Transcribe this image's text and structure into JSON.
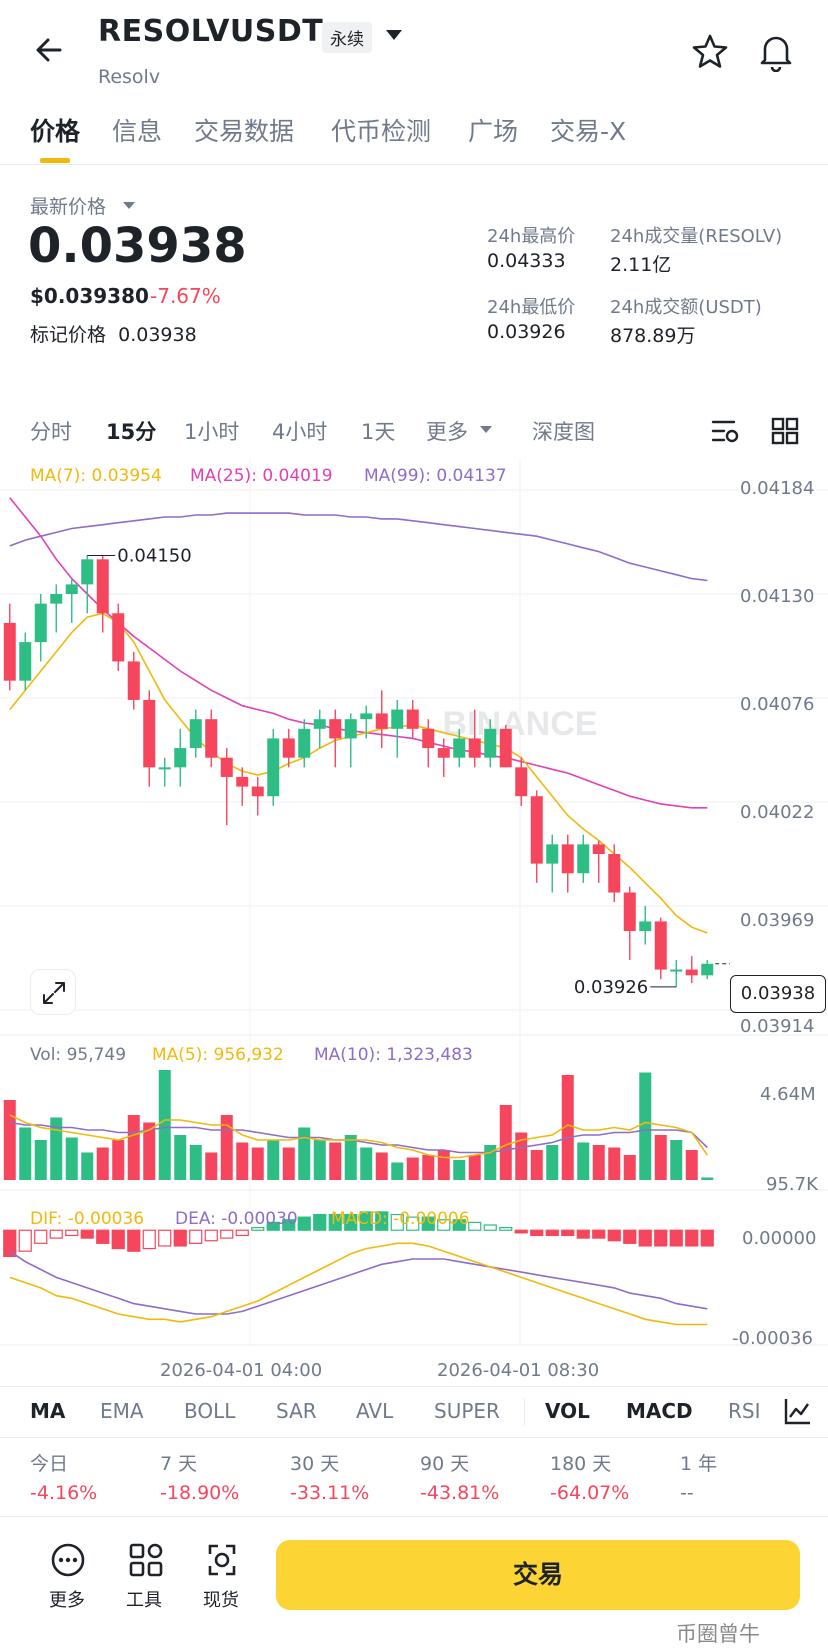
{
  "header": {
    "symbol": "RESOLVUSDT",
    "contract_type": "永续",
    "name": "Resolv"
  },
  "tabs": [
    {
      "label": "价格"
    },
    {
      "label": "信息"
    },
    {
      "label": "交易数据"
    },
    {
      "label": "代币检测"
    },
    {
      "label": "广场"
    },
    {
      "label": "交易-X"
    }
  ],
  "price": {
    "latest_label": "最新价格",
    "last": "0.03938",
    "usd": "$0.039380",
    "change": "-7.67%",
    "mark_label": "标记价格",
    "mark": "0.03938"
  },
  "stats": {
    "high_label": "24h最高价",
    "high": "0.04333",
    "vol_label": "24h成交量(RESOLV)",
    "vol": "2.11亿",
    "low_label": "24h最低价",
    "low": "0.03926",
    "amt_label": "24h成交额(USDT)",
    "amt": "878.89万"
  },
  "timeframes": [
    "分时",
    "15分",
    "1小时",
    "4小时",
    "1天",
    "更多",
    "深度图"
  ],
  "ma_legend": {
    "ma7": "MA(7): 0.03954",
    "ma25": "MA(25): 0.04019",
    "ma99": "MA(99): 0.04137"
  },
  "price_axis": [
    "0.04184",
    "0.04130",
    "0.04076",
    "0.04022",
    "0.03969",
    "0.03914"
  ],
  "chart_annotations": {
    "high": "0.04150",
    "low": "0.03926",
    "current": "0.03938",
    "watermark": "BINANCE"
  },
  "vol_legend": {
    "vol": "Vol: 95,749",
    "ma5": "MA(5): 956,932",
    "ma10": "MA(10): 1,323,483"
  },
  "vol_axis": [
    "4.64M",
    "95.7K"
  ],
  "macd_legend": {
    "dif": "DIF: -0.00036",
    "dea": "DEA: -0.00030",
    "macd": "MACD: -0.00006"
  },
  "macd_axis": [
    "0.00000",
    "-0.00036"
  ],
  "time_axis": [
    "2026-04-01 04:00",
    "2026-04-01 08:30"
  ],
  "indicator_tabs": [
    "MA",
    "EMA",
    "BOLL",
    "SAR",
    "AVL",
    "SUPER",
    "VOL",
    "MACD",
    "RSI"
  ],
  "performance": [
    {
      "label": "今日",
      "value": "-4.16%"
    },
    {
      "label": "7 天",
      "value": "-18.90%"
    },
    {
      "label": "30 天",
      "value": "-33.11%"
    },
    {
      "label": "90 天",
      "value": "-43.81%"
    },
    {
      "label": "180 天",
      "value": "-64.07%"
    },
    {
      "label": "1 年",
      "value": "--"
    }
  ],
  "bottom": {
    "more": "更多",
    "tools": "工具",
    "spot": "现货",
    "trade": "交易"
  },
  "watermark": "币圈曾牛",
  "colors": {
    "up": "#2ebd85",
    "down": "#f6465d",
    "ma7": "#f0b90b",
    "ma25": "#e040b8",
    "ma99": "#8d6dc8",
    "accent": "#fcd535"
  },
  "chart_data": {
    "type": "candlestick",
    "interval": "15分",
    "candles_ohlc": [
      [
        0.04115,
        0.04125,
        0.0408,
        0.04085
      ],
      [
        0.04085,
        0.0411,
        0.0408,
        0.04105
      ],
      [
        0.04105,
        0.0413,
        0.04095,
        0.04125
      ],
      [
        0.04125,
        0.04135,
        0.0411,
        0.0413
      ],
      [
        0.0413,
        0.04138,
        0.04115,
        0.04135
      ],
      [
        0.04135,
        0.0415,
        0.0412,
        0.04148
      ],
      [
        0.04148,
        0.0415,
        0.0411,
        0.0412
      ],
      [
        0.0412,
        0.04125,
        0.0409,
        0.04095
      ],
      [
        0.04095,
        0.041,
        0.0407,
        0.04075
      ],
      [
        0.04075,
        0.0408,
        0.0403,
        0.0404
      ],
      [
        0.0404,
        0.04045,
        0.0403,
        0.0404
      ],
      [
        0.0404,
        0.0406,
        0.0403,
        0.0405
      ],
      [
        0.0405,
        0.0407,
        0.04045,
        0.04065
      ],
      [
        0.04065,
        0.0407,
        0.0404,
        0.04045
      ],
      [
        0.04045,
        0.0405,
        0.0401,
        0.04035
      ],
      [
        0.04035,
        0.0404,
        0.0402,
        0.0403
      ],
      [
        0.0403,
        0.04035,
        0.04015,
        0.04025
      ],
      [
        0.04025,
        0.0406,
        0.0402,
        0.04055
      ],
      [
        0.04055,
        0.0406,
        0.0404,
        0.04045
      ],
      [
        0.04045,
        0.04065,
        0.0404,
        0.0406
      ],
      [
        0.0406,
        0.0407,
        0.0405,
        0.04065
      ],
      [
        0.04065,
        0.0407,
        0.0404,
        0.04055
      ],
      [
        0.04055,
        0.04068,
        0.0404,
        0.04065
      ],
      [
        0.04065,
        0.04072,
        0.04055,
        0.04068
      ],
      [
        0.04068,
        0.0408,
        0.0405,
        0.0406
      ],
      [
        0.0406,
        0.04075,
        0.04045,
        0.0407
      ],
      [
        0.0407,
        0.04075,
        0.04055,
        0.0406
      ],
      [
        0.0406,
        0.04065,
        0.0404,
        0.0405
      ],
      [
        0.0405,
        0.04055,
        0.04035,
        0.04045
      ],
      [
        0.04045,
        0.0406,
        0.0404,
        0.04055
      ],
      [
        0.04055,
        0.0407,
        0.0404,
        0.04045
      ],
      [
        0.04045,
        0.04065,
        0.0404,
        0.0406
      ],
      [
        0.0406,
        0.04062,
        0.0404,
        0.0404
      ],
      [
        0.0404,
        0.04045,
        0.0402,
        0.04025
      ],
      [
        0.04025,
        0.04028,
        0.0398,
        0.0399
      ],
      [
        0.0399,
        0.04005,
        0.03975,
        0.04
      ],
      [
        0.04,
        0.04005,
        0.03975,
        0.03985
      ],
      [
        0.03985,
        0.04005,
        0.0398,
        0.04
      ],
      [
        0.04,
        0.04002,
        0.0398,
        0.03995
      ],
      [
        0.03995,
        0.04,
        0.0397,
        0.03975
      ],
      [
        0.03975,
        0.03978,
        0.0394,
        0.03955
      ],
      [
        0.03955,
        0.03968,
        0.03948,
        0.0396
      ],
      [
        0.0396,
        0.03962,
        0.0393,
        0.03935
      ],
      [
        0.03935,
        0.0394,
        0.03926,
        0.03935
      ],
      [
        0.03935,
        0.03942,
        0.03928,
        0.03932
      ],
      [
        0.03932,
        0.0394,
        0.0393,
        0.03938
      ]
    ],
    "ma7": [
      0.0407,
      0.0408,
      0.0409,
      0.041,
      0.0411,
      0.04118,
      0.0412,
      0.04115,
      0.04105,
      0.0409,
      0.04075,
      0.04065,
      0.04055,
      0.04048,
      0.04042,
      0.04038,
      0.04036,
      0.04038,
      0.04042,
      0.04045,
      0.0405,
      0.04054,
      0.04056,
      0.04058,
      0.0406,
      0.04061,
      0.04062,
      0.0406,
      0.04058,
      0.04056,
      0.04054,
      0.04052,
      0.0405,
      0.04045,
      0.04035,
      0.04025,
      0.04015,
      0.04008,
      0.04002,
      0.03995,
      0.03988,
      0.0398,
      0.03972,
      0.03963,
      0.03957,
      0.03954
    ],
    "ma25": [
      0.0418,
      0.0417,
      0.0416,
      0.04148,
      0.04138,
      0.0413,
      0.04122,
      0.04115,
      0.04108,
      0.04102,
      0.04096,
      0.0409,
      0.04085,
      0.0408,
      0.04076,
      0.04072,
      0.0407,
      0.04068,
      0.04065,
      0.04063,
      0.04062,
      0.0406,
      0.04059,
      0.04058,
      0.04057,
      0.04056,
      0.04055,
      0.04053,
      0.04051,
      0.04049,
      0.04048,
      0.04046,
      0.04045,
      0.04043,
      0.04041,
      0.04039,
      0.04037,
      0.04034,
      0.04031,
      0.04028,
      0.04025,
      0.04023,
      0.04021,
      0.0402,
      0.04019,
      0.04019
    ],
    "ma99": [
      0.04155,
      0.04158,
      0.0416,
      0.04162,
      0.04164,
      0.04165,
      0.04166,
      0.04167,
      0.04168,
      0.04169,
      0.0417,
      0.0417,
      0.04171,
      0.04171,
      0.04172,
      0.04172,
      0.04172,
      0.04172,
      0.04172,
      0.04171,
      0.04171,
      0.04171,
      0.0417,
      0.0417,
      0.04169,
      0.04169,
      0.04168,
      0.04167,
      0.04166,
      0.04165,
      0.04164,
      0.04163,
      0.04162,
      0.04161,
      0.0416,
      0.04158,
      0.04156,
      0.04154,
      0.04152,
      0.04149,
      0.04146,
      0.04144,
      0.04142,
      0.0414,
      0.04138,
      0.04137
    ],
    "volume": [
      3.2,
      2.1,
      1.6,
      2.5,
      1.7,
      1.1,
      1.3,
      1.6,
      2.6,
      2.3,
      4.4,
      1.8,
      1.4,
      1.1,
      2.6,
      1.5,
      1.3,
      1.6,
      1.3,
      2.1,
      1.6,
      1.5,
      1.8,
      1.3,
      1.1,
      0.7,
      0.9,
      1.0,
      1.2,
      0.8,
      1.0,
      1.4,
      3.0,
      1.9,
      1.2,
      1.4,
      4.2,
      1.5,
      1.4,
      1.3,
      1.0,
      4.3,
      1.8,
      1.6,
      1.2,
      0.1
    ],
    "vol_ma5": [
      2.6,
      2.3,
      2.1,
      2.0,
      1.9,
      1.8,
      1.7,
      1.6,
      1.8,
      2.0,
      2.4,
      2.4,
      2.3,
      2.2,
      2.2,
      1.8,
      1.6,
      1.6,
      1.6,
      1.7,
      1.6,
      1.6,
      1.6,
      1.6,
      1.5,
      1.3,
      1.2,
      1.0,
      0.9,
      0.9,
      1.0,
      1.1,
      1.4,
      1.6,
      1.7,
      1.8,
      2.2,
      2.0,
      2.0,
      2.1,
      2.0,
      2.3,
      2.2,
      2.1,
      1.9,
      1.0
    ],
    "vol_ma10": [
      2.3,
      2.2,
      2.2,
      2.1,
      2.1,
      2.0,
      2.0,
      1.9,
      1.9,
      2.0,
      2.1,
      2.1,
      2.1,
      2.0,
      2.0,
      2.0,
      1.9,
      1.8,
      1.7,
      1.7,
      1.7,
      1.6,
      1.6,
      1.5,
      1.4,
      1.4,
      1.3,
      1.2,
      1.2,
      1.1,
      1.1,
      1.1,
      1.2,
      1.3,
      1.4,
      1.5,
      1.7,
      1.8,
      1.8,
      1.9,
      1.9,
      2.0,
      2.0,
      2.0,
      1.9,
      1.3
    ],
    "macd_hist": [
      -0.0001,
      -8e-05,
      -5e-05,
      -3e-05,
      -2e-05,
      -3e-05,
      -5e-05,
      -7e-05,
      -8e-05,
      -7e-05,
      -6e-05,
      -6e-05,
      -5e-05,
      -4e-05,
      -3e-05,
      -2e-05,
      1e-05,
      3e-05,
      4e-05,
      5e-05,
      6e-05,
      6e-05,
      6e-05,
      7e-05,
      7e-05,
      6e-05,
      5e-05,
      5e-05,
      4e-05,
      4e-05,
      3e-05,
      2e-05,
      1e-05,
      -1e-05,
      -2e-05,
      -2e-05,
      -2e-05,
      -3e-05,
      -3e-05,
      -4e-05,
      -5e-05,
      -6e-05,
      -6e-05,
      -6e-05,
      -6e-05,
      -6e-05
    ],
    "dif": [
      -0.00018,
      -0.0002,
      -0.00022,
      -0.00025,
      -0.00026,
      -0.00028,
      -0.0003,
      -0.00032,
      -0.00033,
      -0.00034,
      -0.00034,
      -0.00035,
      -0.00034,
      -0.00033,
      -0.00031,
      -0.00029,
      -0.00027,
      -0.00024,
      -0.00021,
      -0.00018,
      -0.00015,
      -0.00012,
      -9e-05,
      -7e-05,
      -6e-05,
      -5e-05,
      -5e-05,
      -6e-05,
      -8e-05,
      -0.0001,
      -0.00012,
      -0.00014,
      -0.00016,
      -0.00018,
      -0.0002,
      -0.00022,
      -0.00024,
      -0.00026,
      -0.00028,
      -0.0003,
      -0.00032,
      -0.00034,
      -0.00035,
      -0.00036,
      -0.00036,
      -0.00036
    ],
    "dea": [
      -8e-05,
      -0.00012,
      -0.00015,
      -0.00018,
      -0.0002,
      -0.00022,
      -0.00024,
      -0.00026,
      -0.00028,
      -0.00029,
      -0.0003,
      -0.00031,
      -0.00032,
      -0.00032,
      -0.00032,
      -0.00031,
      -0.00029,
      -0.00027,
      -0.00025,
      -0.00023,
      -0.00021,
      -0.00019,
      -0.00017,
      -0.00015,
      -0.00013,
      -0.00012,
      -0.00011,
      -0.00011,
      -0.00011,
      -0.00012,
      -0.00013,
      -0.00014,
      -0.00015,
      -0.00016,
      -0.00017,
      -0.00018,
      -0.00019,
      -0.0002,
      -0.00021,
      -0.00022,
      -0.00024,
      -0.00025,
      -0.00026,
      -0.00028,
      -0.00029,
      -0.0003
    ],
    "ylim": [
      0.03914,
      0.04184
    ],
    "macd_ylim": [
      -0.00036,
      0.0
    ]
  }
}
